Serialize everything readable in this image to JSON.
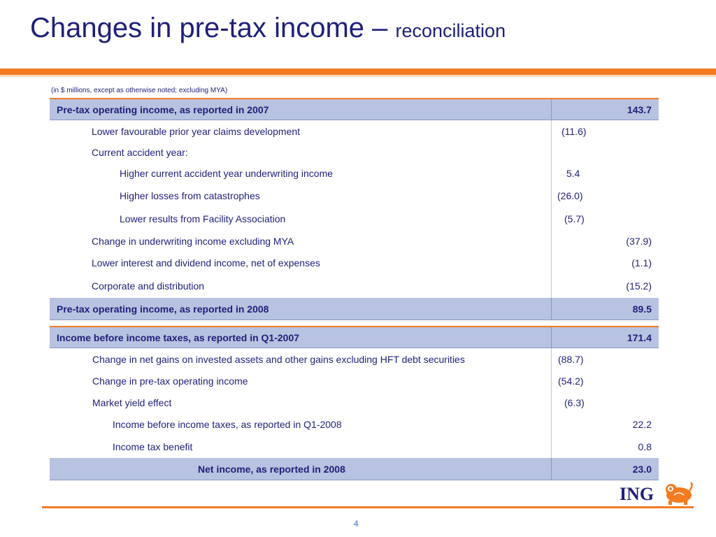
{
  "title": {
    "main": "Changes in pre-tax income – ",
    "sub": "reconciliation"
  },
  "note": "(in $ millions, except as otherwise noted; excluding MYA)",
  "table1": {
    "header": {
      "label": "Pre-tax operating income, as reported in 2007",
      "total": "143.7"
    },
    "rows": [
      {
        "label": "Lower favourable prior year claims development",
        "sub": "(11.6)",
        "total": ""
      },
      {
        "label": "Current accident year:",
        "sub": "",
        "total": ""
      },
      {
        "label": "Higher current accident year underwriting income",
        "sub": "5.4",
        "total": ""
      },
      {
        "label": "Higher losses from catastrophes",
        "sub": "(26.0)",
        "total": ""
      },
      {
        "label": "Lower results from Facility Association",
        "sub": "(5.7)",
        "total": ""
      },
      {
        "label": "Change in underwriting income excluding MYA",
        "sub": "",
        "total": "(37.9)"
      },
      {
        "label": "Lower interest and dividend income, net of expenses",
        "sub": "",
        "total": "(1.1)"
      },
      {
        "label": "Corporate and distribution",
        "sub": "",
        "total": "(15.2)"
      }
    ],
    "footer": {
      "label": "Pre-tax operating income, as reported in 2008",
      "total": "89.5"
    }
  },
  "table2": {
    "header": {
      "label": "Income before income taxes, as reported in Q1-2007",
      "total": "171.4"
    },
    "rows": [
      {
        "label": "Change in net gains on invested assets and other gains excluding HFT debt securities",
        "sub": "(88.7)",
        "total": ""
      },
      {
        "label": "Change in pre-tax operating income",
        "sub": "(54.2)",
        "total": ""
      },
      {
        "label": "Market yield effect",
        "sub": "(6.3)",
        "total": ""
      },
      {
        "label": "Income before income taxes, as reported in Q1-2008",
        "sub": "",
        "total": "22.2"
      },
      {
        "label": "Income tax benefit",
        "sub": "",
        "total": "0.8"
      }
    ],
    "footer": {
      "label": "Net income, as reported in 2008",
      "total": "23.0"
    }
  },
  "logo": {
    "text": "ING",
    "icon": "lion-icon"
  },
  "page_number": "4",
  "colors": {
    "accent": "#f47b20",
    "header_fill": "#b7c3e0",
    "text": "#1f1f7a"
  }
}
